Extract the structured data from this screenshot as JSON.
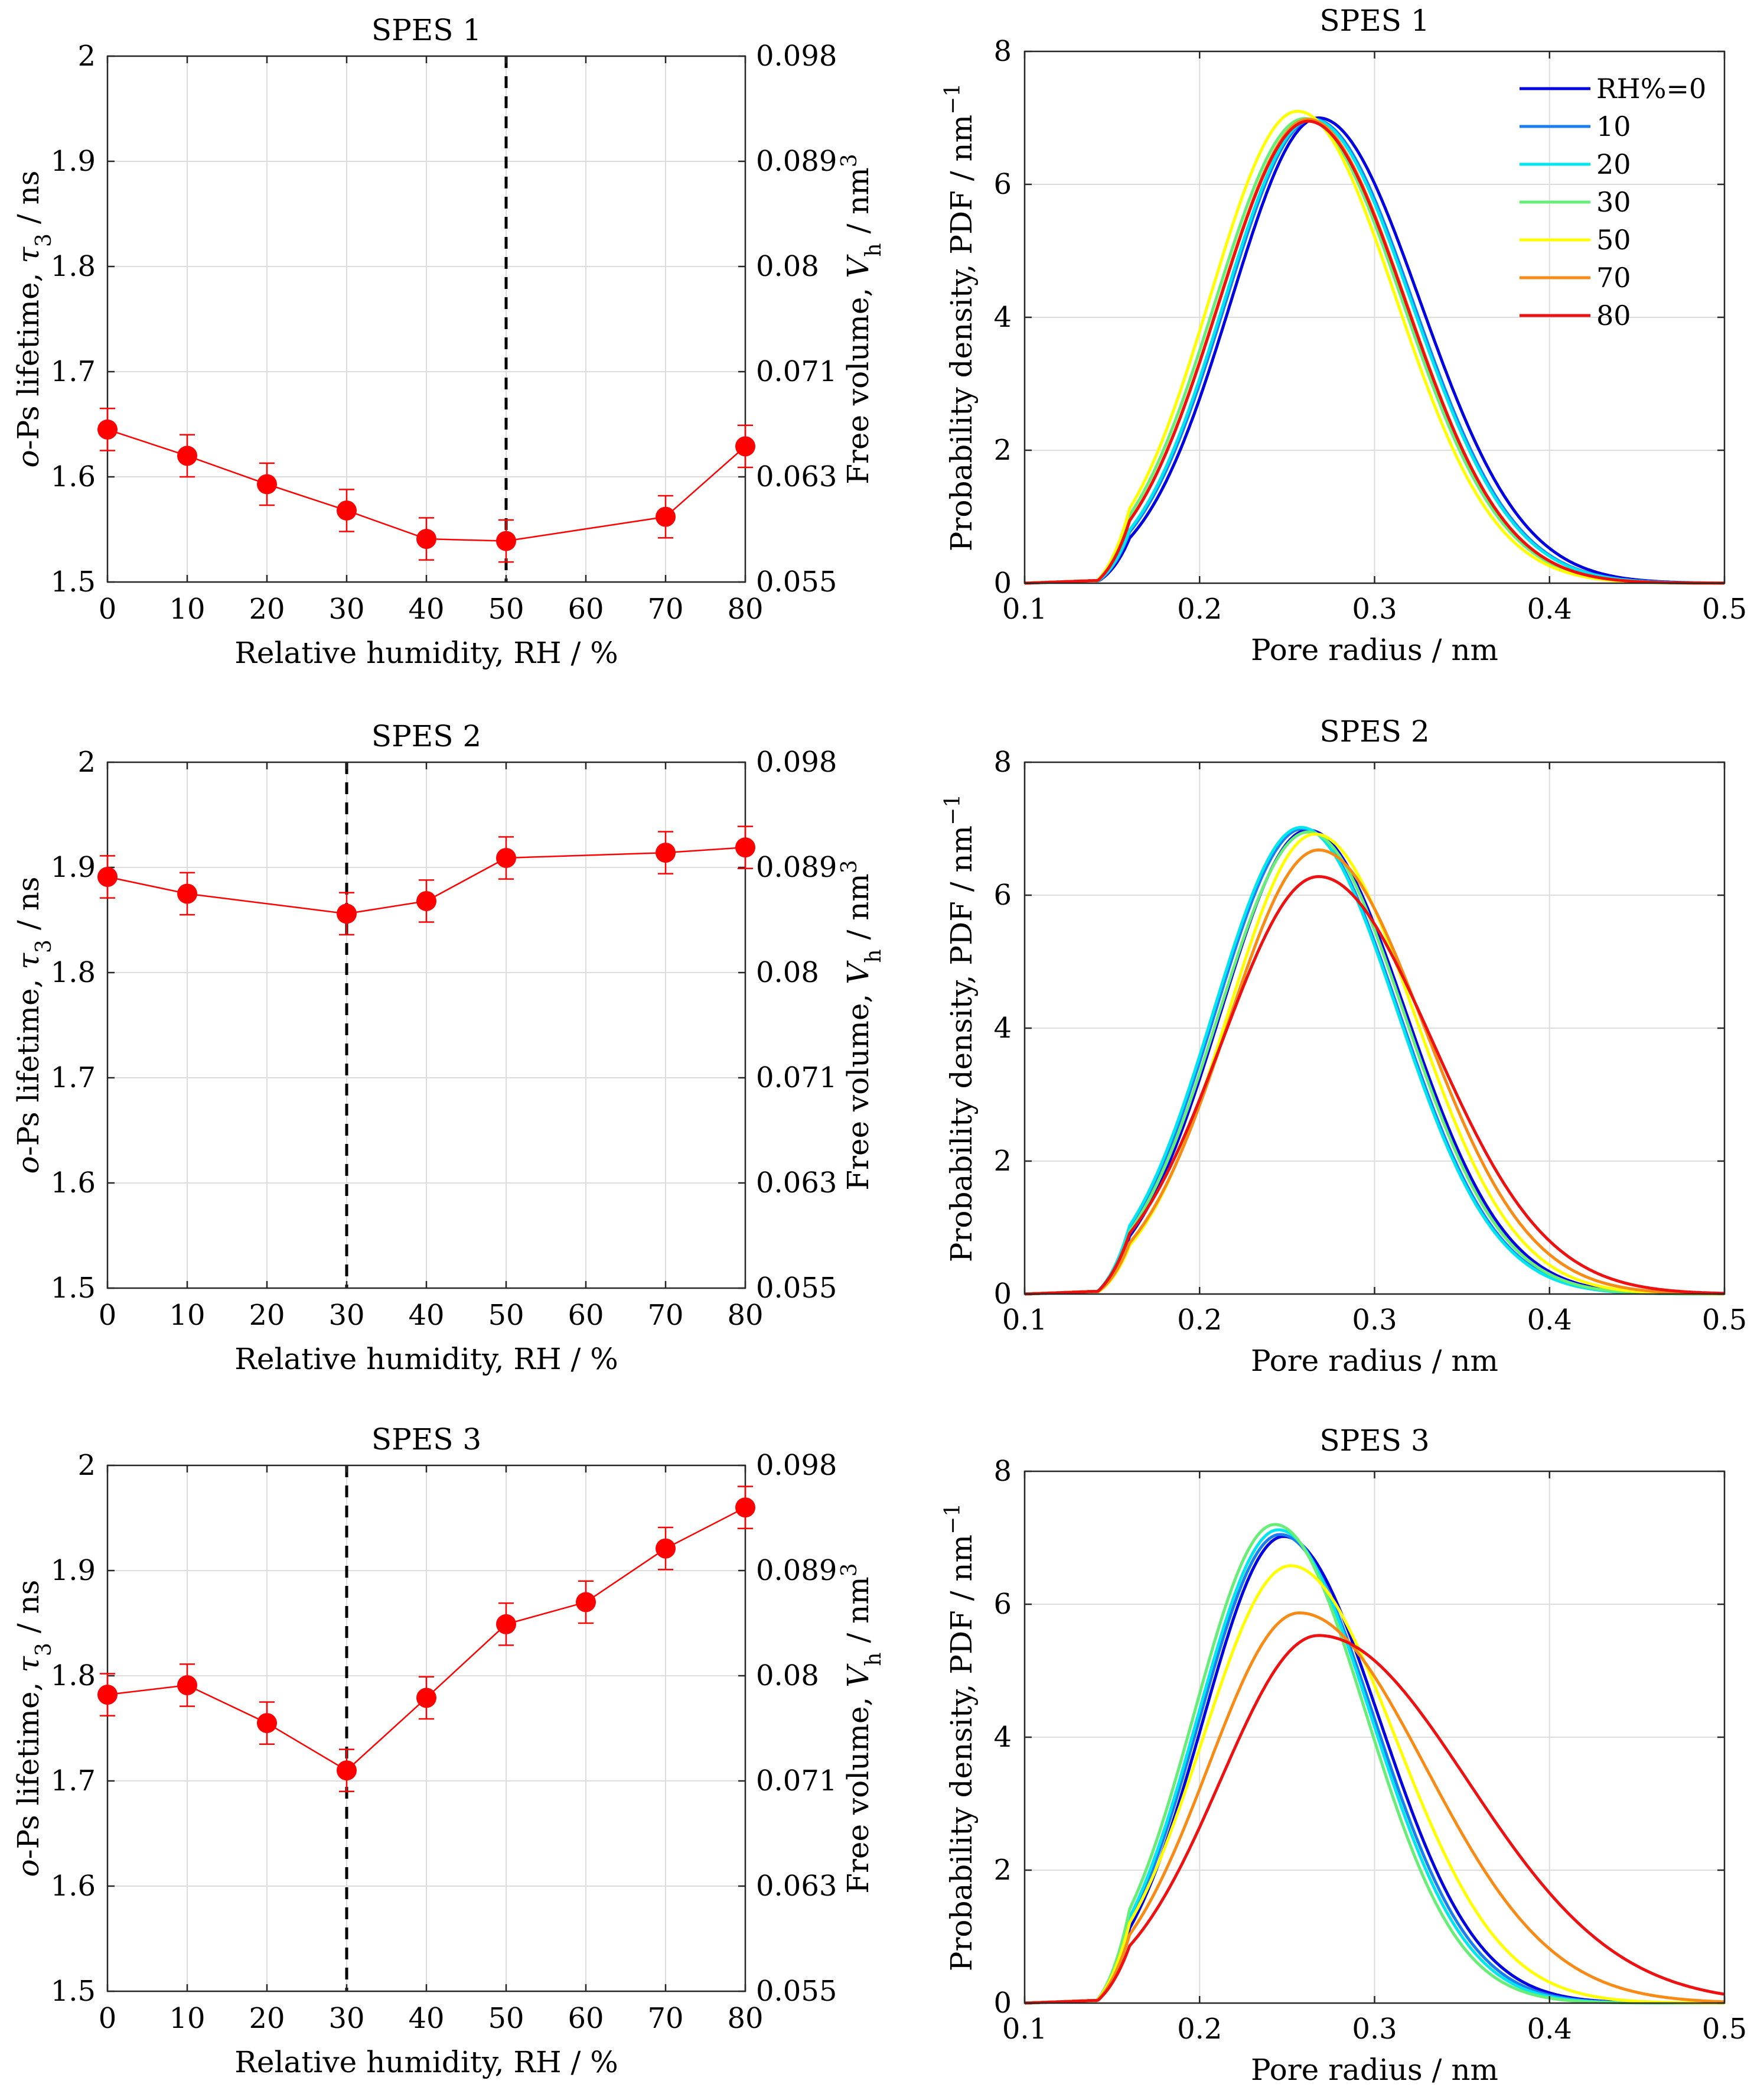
{
  "chart_data": [
    {
      "type": "line",
      "title": "SPES 1",
      "xlabel": "Relative humidity, RH / %",
      "ylabel": "o-Ps lifetime, τ3 / ns",
      "ylabel_right": "Free volume, Vh / nm3",
      "xlim": [
        0,
        80
      ],
      "ylim": [
        1.5,
        2.0
      ],
      "x_ticks": [
        "0",
        "10",
        "20",
        "30",
        "40",
        "50",
        "60",
        "70",
        "80"
      ],
      "y_ticks": [
        "1.5",
        "1.6",
        "1.7",
        "1.8",
        "1.9",
        "2"
      ],
      "y_right_ticks": [
        "0.055",
        "0.063",
        "0.071",
        "0.08",
        "0.089",
        "0.098"
      ],
      "series": [
        {
          "name": "o-Ps lifetime",
          "color": "#ff0000",
          "x": [
            0,
            10,
            20,
            30,
            40,
            50,
            70,
            80
          ],
          "values": [
            1.645,
            1.62,
            1.593,
            1.568,
            1.541,
            1.539,
            1.562,
            1.629
          ],
          "error": [
            0.02,
            0.02,
            0.02,
            0.02,
            0.02,
            0.02,
            0.02,
            0.02
          ]
        }
      ],
      "vline_x": 50
    },
    {
      "type": "line",
      "title": "SPES 1",
      "xlabel": "Pore radius / nm",
      "ylabel": "Probability density, PDF / nm−1",
      "xlim": [
        0.1,
        0.5
      ],
      "ylim": [
        0,
        8
      ],
      "x_ticks": [
        "0.1",
        "0.2",
        "0.3",
        "0.4",
        "0.5"
      ],
      "y_ticks": [
        "0",
        "2",
        "4",
        "6",
        "8"
      ],
      "legend": [
        "RH%=0",
        "10",
        "20",
        "30",
        "50",
        "70",
        "80"
      ],
      "legend_position": "top-right",
      "series": [
        {
          "name": "RH%=0",
          "color": "#0000e0",
          "peak_x": 0.268,
          "peak_y": 7.0,
          "sigma_left": 0.05,
          "sigma_right": 0.058
        },
        {
          "name": "10",
          "color": "#1c7df0",
          "peak_x": 0.265,
          "peak_y": 6.98,
          "sigma_left": 0.05,
          "sigma_right": 0.057
        },
        {
          "name": "20",
          "color": "#00e6f0",
          "peak_x": 0.264,
          "peak_y": 6.98,
          "sigma_left": 0.05,
          "sigma_right": 0.057
        },
        {
          "name": "30",
          "color": "#66ee77",
          "peak_x": 0.26,
          "peak_y": 6.99,
          "sigma_left": 0.051,
          "sigma_right": 0.056
        },
        {
          "name": "50",
          "color": "#ffff00",
          "peak_x": 0.256,
          "peak_y": 7.1,
          "sigma_left": 0.05,
          "sigma_right": 0.056
        },
        {
          "name": "70",
          "color": "#f78b16",
          "peak_x": 0.262,
          "peak_y": 6.98,
          "sigma_left": 0.051,
          "sigma_right": 0.056
        },
        {
          "name": "80",
          "color": "#ee1111",
          "peak_x": 0.262,
          "peak_y": 6.95,
          "sigma_left": 0.051,
          "sigma_right": 0.056
        }
      ]
    },
    {
      "type": "line",
      "title": "SPES 2",
      "xlabel": "Relative humidity, RH / %",
      "ylabel": "o-Ps lifetime, τ3 / ns",
      "ylabel_right": "Free volume, Vh / nm3",
      "xlim": [
        0,
        80
      ],
      "ylim": [
        1.5,
        2.0
      ],
      "x_ticks": [
        "0",
        "10",
        "20",
        "30",
        "40",
        "50",
        "60",
        "70",
        "80"
      ],
      "y_ticks": [
        "1.5",
        "1.6",
        "1.7",
        "1.8",
        "1.9",
        "2"
      ],
      "y_right_ticks": [
        "0.055",
        "0.063",
        "0.071",
        "0.08",
        "0.089",
        "0.098"
      ],
      "series": [
        {
          "name": "o-Ps lifetime",
          "color": "#ff0000",
          "x": [
            0,
            10,
            30,
            40,
            50,
            70,
            80
          ],
          "values": [
            1.891,
            1.875,
            1.856,
            1.868,
            1.909,
            1.914,
            1.919
          ],
          "error": [
            0.02,
            0.02,
            0.02,
            0.02,
            0.02,
            0.02,
            0.02
          ]
        }
      ],
      "vline_x": 30
    },
    {
      "type": "line",
      "title": "SPES 2",
      "xlabel": "Pore radius / nm",
      "ylabel": "Probability density, PDF / nm−1",
      "xlim": [
        0.1,
        0.5
      ],
      "ylim": [
        0,
        8
      ],
      "x_ticks": [
        "0.1",
        "0.2",
        "0.3",
        "0.4",
        "0.5"
      ],
      "y_ticks": [
        "0",
        "2",
        "4",
        "6",
        "8"
      ],
      "series": [
        {
          "name": "RH%=0",
          "color": "#0000e0",
          "peak_x": 0.262,
          "peak_y": 6.98,
          "sigma_left": 0.05,
          "sigma_right": 0.056
        },
        {
          "name": "10",
          "color": "#1c7df0",
          "peak_x": 0.259,
          "peak_y": 7.0,
          "sigma_left": 0.05,
          "sigma_right": 0.055
        },
        {
          "name": "20",
          "color": "#00e6f0",
          "peak_x": 0.258,
          "peak_y": 7.02,
          "sigma_left": 0.05,
          "sigma_right": 0.055
        },
        {
          "name": "30",
          "color": "#66ee77",
          "peak_x": 0.262,
          "peak_y": 6.95,
          "sigma_left": 0.051,
          "sigma_right": 0.055
        },
        {
          "name": "50",
          "color": "#ffff00",
          "peak_x": 0.266,
          "peak_y": 6.92,
          "sigma_left": 0.05,
          "sigma_right": 0.057
        },
        {
          "name": "70",
          "color": "#f78b16",
          "peak_x": 0.268,
          "peak_y": 6.68,
          "sigma_left": 0.052,
          "sigma_right": 0.06
        },
        {
          "name": "80",
          "color": "#ee1111",
          "peak_x": 0.268,
          "peak_y": 6.28,
          "sigma_left": 0.055,
          "sigma_right": 0.065
        }
      ]
    },
    {
      "type": "line",
      "title": "SPES 3",
      "xlabel": "Relative humidity, RH / %",
      "ylabel": "o-Ps lifetime, τ3 / ns",
      "ylabel_right": "Free volume, Vh / nm3",
      "xlim": [
        0,
        80
      ],
      "ylim": [
        1.5,
        2.0
      ],
      "x_ticks": [
        "0",
        "10",
        "20",
        "30",
        "40",
        "50",
        "60",
        "70",
        "80"
      ],
      "y_ticks": [
        "1.5",
        "1.6",
        "1.7",
        "1.8",
        "1.9",
        "2"
      ],
      "y_right_ticks": [
        "0.055",
        "0.063",
        "0.071",
        "0.08",
        "0.089",
        "0.098"
      ],
      "series": [
        {
          "name": "o-Ps lifetime",
          "color": "#ff0000",
          "x": [
            0,
            10,
            20,
            30,
            40,
            50,
            60,
            70,
            80
          ],
          "values": [
            1.782,
            1.791,
            1.755,
            1.71,
            1.779,
            1.849,
            1.87,
            1.921,
            1.96
          ],
          "error": [
            0.02,
            0.02,
            0.02,
            0.02,
            0.02,
            0.02,
            0.02,
            0.02,
            0.02
          ]
        }
      ],
      "vline_x": 30
    },
    {
      "type": "line",
      "title": "SPES 3",
      "xlabel": "Pore radius / nm",
      "ylabel": "Probability density, PDF / nm−1",
      "xlim": [
        0.1,
        0.5
      ],
      "ylim": [
        0,
        8
      ],
      "x_ticks": [
        "0.1",
        "0.2",
        "0.3",
        "0.4",
        "0.5"
      ],
      "y_ticks": [
        "0",
        "2",
        "4",
        "6",
        "8"
      ],
      "series": [
        {
          "name": "RH%=0",
          "color": "#0000e0",
          "peak_x": 0.248,
          "peak_y": 7.02,
          "sigma_left": 0.046,
          "sigma_right": 0.055
        },
        {
          "name": "10",
          "color": "#1c7df0",
          "peak_x": 0.246,
          "peak_y": 7.05,
          "sigma_left": 0.046,
          "sigma_right": 0.054
        },
        {
          "name": "20",
          "color": "#00e6f0",
          "peak_x": 0.245,
          "peak_y": 7.12,
          "sigma_left": 0.046,
          "sigma_right": 0.053
        },
        {
          "name": "30",
          "color": "#66ee77",
          "peak_x": 0.243,
          "peak_y": 7.2,
          "sigma_left": 0.046,
          "sigma_right": 0.052
        },
        {
          "name": "50",
          "color": "#ffff00",
          "peak_x": 0.252,
          "peak_y": 6.58,
          "sigma_left": 0.05,
          "sigma_right": 0.06
        },
        {
          "name": "70",
          "color": "#f78b16",
          "peak_x": 0.257,
          "peak_y": 5.87,
          "sigma_left": 0.052,
          "sigma_right": 0.072
        },
        {
          "name": "80",
          "color": "#ee1111",
          "peak_x": 0.268,
          "peak_y": 5.53,
          "sigma_left": 0.056,
          "sigma_right": 0.085
        }
      ]
    }
  ]
}
